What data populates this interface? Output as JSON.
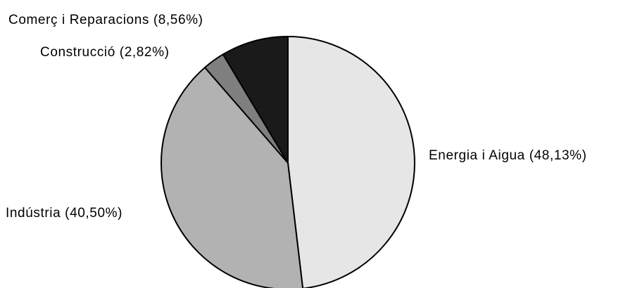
{
  "chart_data": {
    "type": "pie",
    "slices": [
      {
        "label": "Energia i Aigua (48,13%)",
        "value": 48.13,
        "color": "#e6e6e6"
      },
      {
        "label": "Indústria (40,50%)",
        "value": 40.5,
        "color": "#b2b2b2"
      },
      {
        "label": "Construcció (2,82%)",
        "value": 2.82,
        "color": "#7f7f7f"
      },
      {
        "label": "Comerç i Reparacions (8,56%)",
        "value": 8.56,
        "color": "#1a1a1a"
      }
    ],
    "legend": false,
    "start": "top",
    "direction": "clockwise"
  }
}
